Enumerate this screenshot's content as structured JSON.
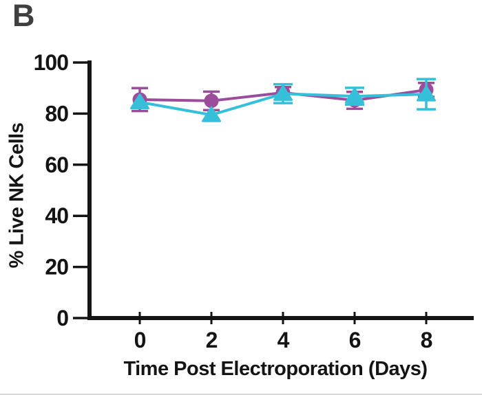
{
  "panel_label": "B",
  "colors": {
    "background": "#ffffff",
    "axis": "#141414",
    "panel_label": "#3f3f3f",
    "tick_text": "#141414",
    "purple": "#9b4d9b",
    "cyan": "#35bfd9"
  },
  "chart_data": {
    "type": "line",
    "title": "",
    "xlabel": "Time Post Electroporation (Days)",
    "ylabel": "% Live NK Cells",
    "x": [
      0,
      2,
      4,
      6,
      8
    ],
    "xtick_labels": [
      "0",
      "2",
      "4",
      "6",
      "8"
    ],
    "ytick_values": [
      0,
      20,
      40,
      60,
      80,
      100
    ],
    "xlim": [
      0,
      8
    ],
    "ylim": [
      0,
      100
    ],
    "grid": false,
    "legend_position": "none",
    "series": [
      {
        "name": "purple-circle-series",
        "marker": "circle",
        "color": "#9b4d9b",
        "values": [
          85.5,
          85.0,
          88.2,
          85.2,
          89.3
        ],
        "error": [
          4.5,
          3.6,
          2.2,
          3.3,
          2.7
        ]
      },
      {
        "name": "cyan-triangle-series",
        "marker": "triangle",
        "color": "#35bfd9",
        "values": [
          84.5,
          79.5,
          87.8,
          86.8,
          87.6
        ],
        "error": [
          0,
          0,
          3.7,
          3.3,
          5.9
        ]
      }
    ]
  }
}
